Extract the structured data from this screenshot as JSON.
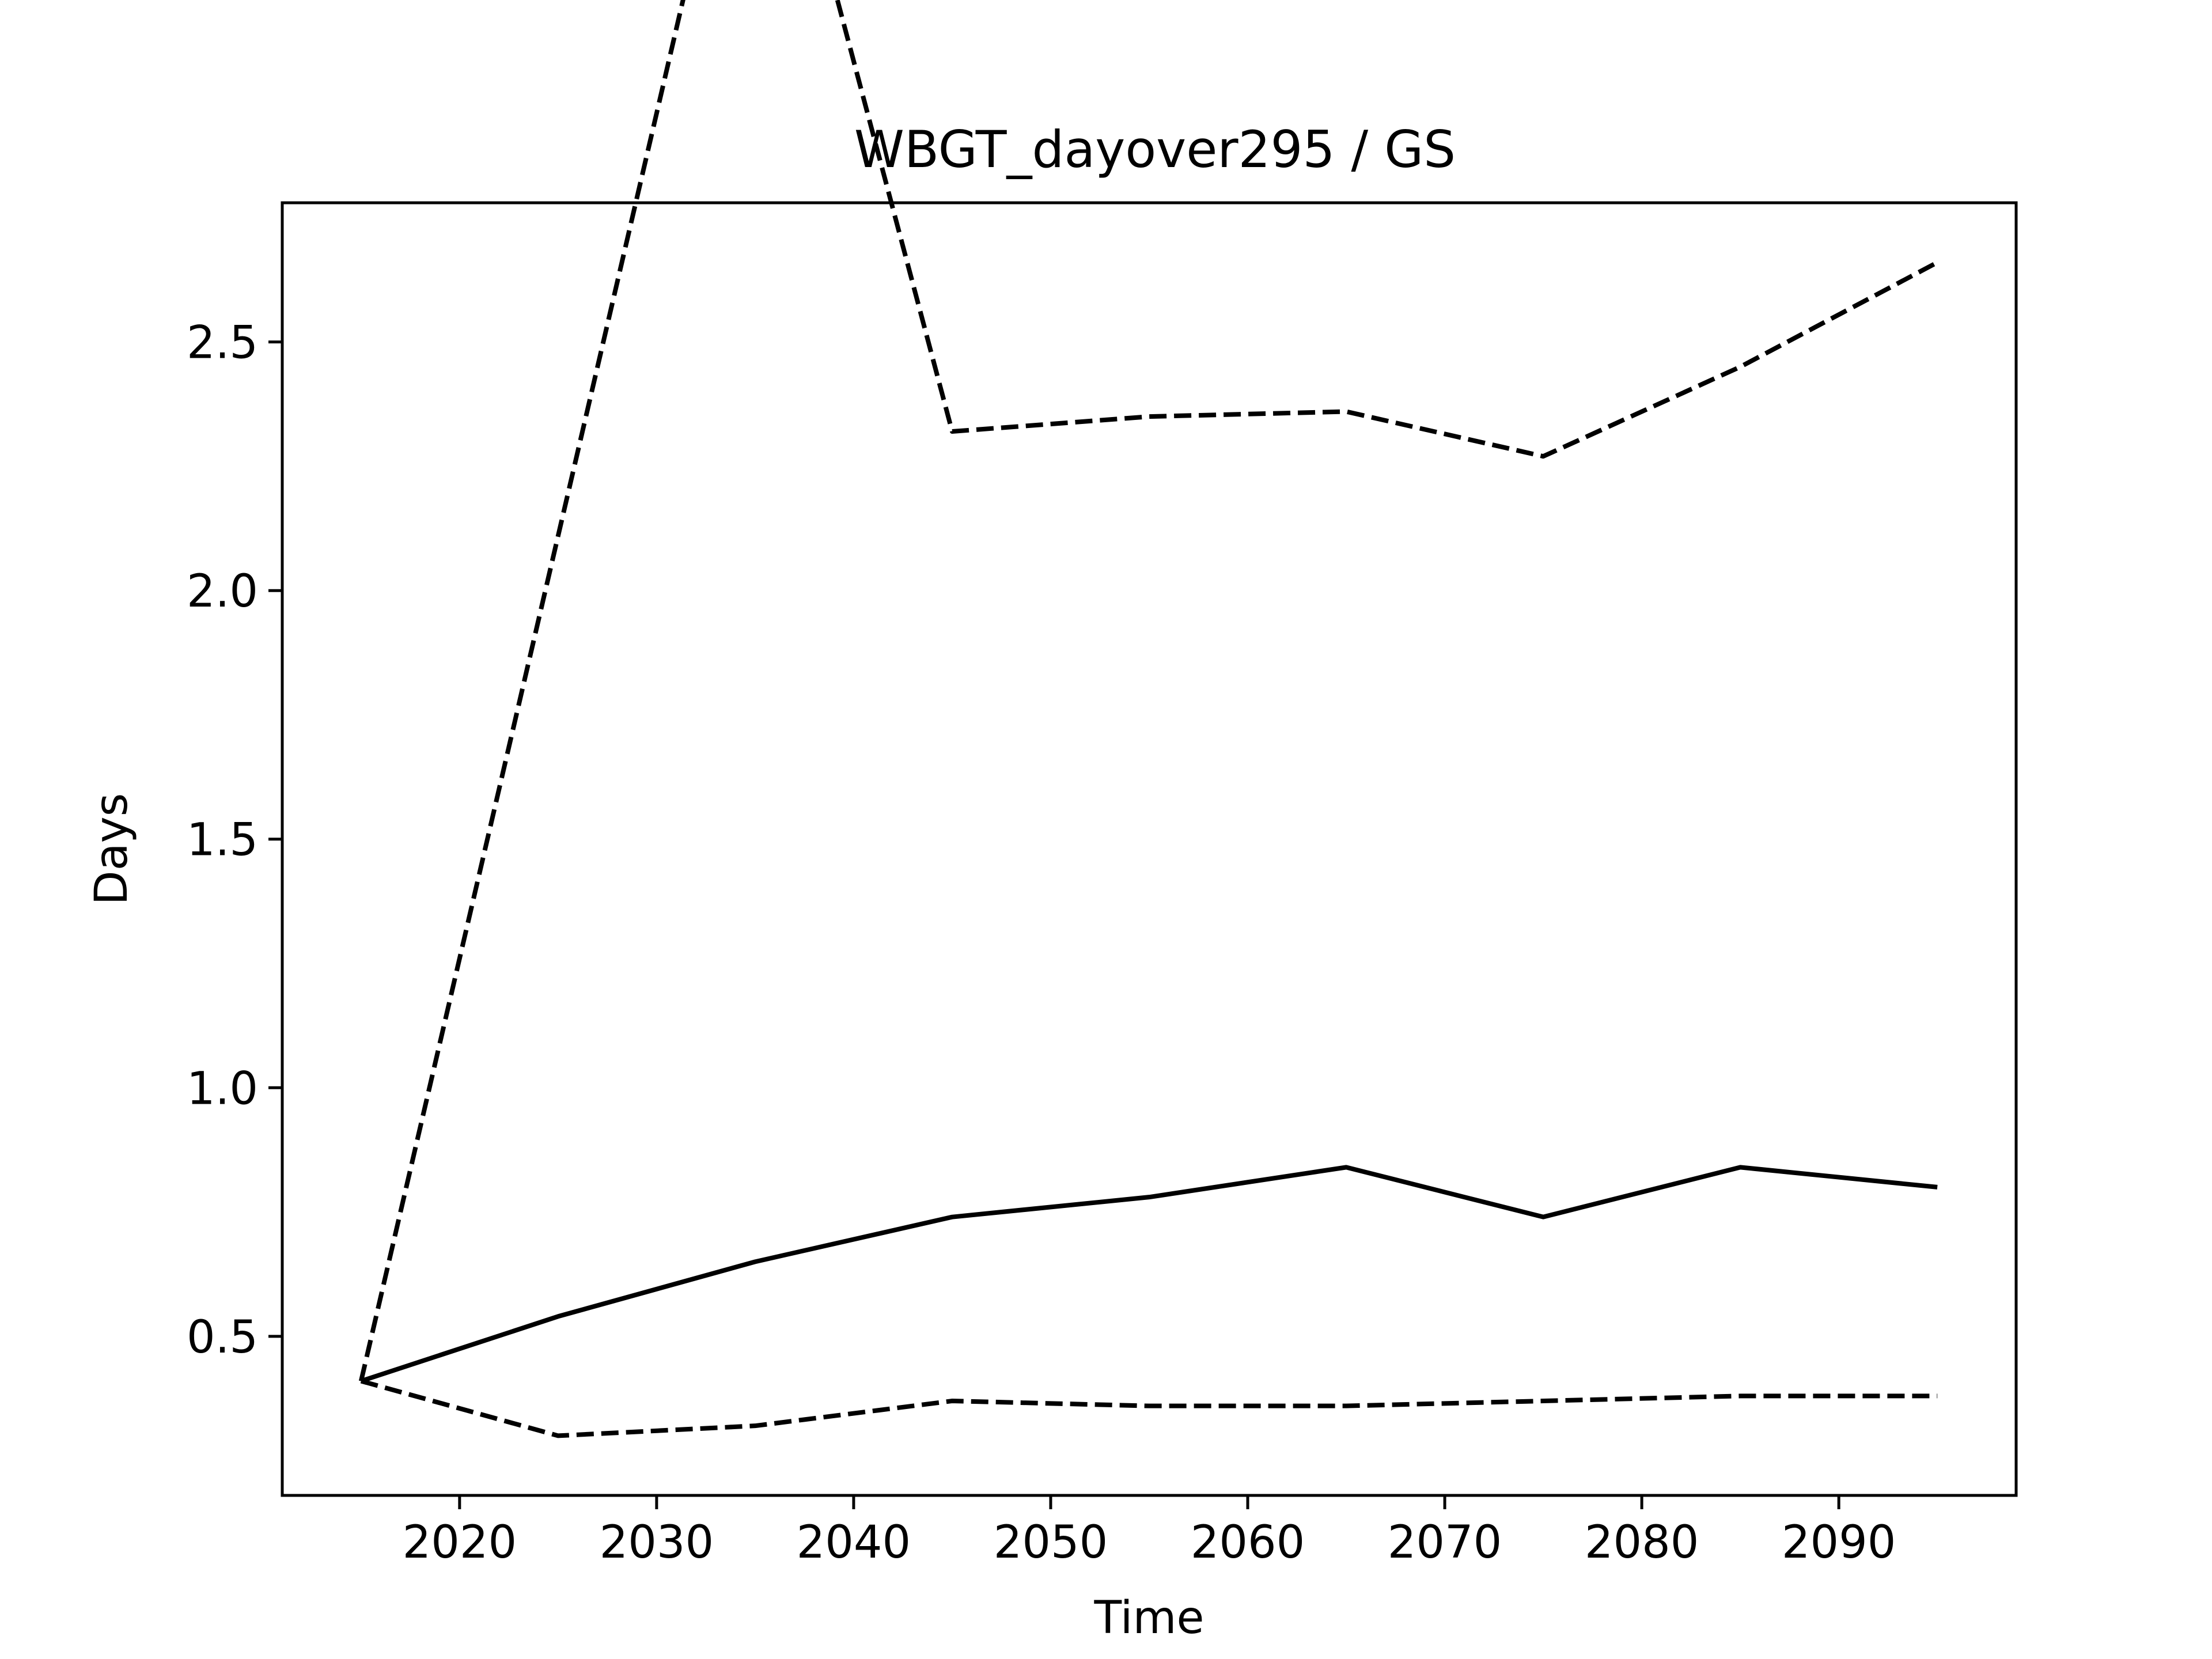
{
  "chart_data": {
    "type": "line",
    "title": "WBGT_dayover295 / GS",
    "xlabel": "Time",
    "ylabel": "Days",
    "xlim": [
      2011,
      2099
    ],
    "ylim": [
      0.18,
      2.78
    ],
    "xticks": [
      2020,
      2030,
      2040,
      2050,
      2060,
      2070,
      2080,
      2090
    ],
    "xtick_labels": [
      "2020",
      "2030",
      "2040",
      "2050",
      "2060",
      "2070",
      "2080",
      "2090"
    ],
    "yticks": [
      0.5,
      1.0,
      1.5,
      2.0,
      2.5
    ],
    "ytick_labels": [
      "0.5",
      "1.0",
      "1.5",
      "2.0",
      "2.5"
    ],
    "grid": false,
    "legend": "none",
    "x": [
      2015,
      2025,
      2035,
      2045,
      2055,
      2065,
      2075,
      2085,
      2095
    ],
    "series": [
      {
        "values": [
          0.41,
          2.11,
          3.81,
          2.32,
          2.35,
          2.36,
          2.27,
          2.45,
          2.66
        ],
        "line_style": "dashed",
        "color": "#000000"
      },
      {
        "values": [
          0.41,
          0.54,
          0.65,
          0.74,
          0.78,
          0.84,
          0.74,
          0.84,
          0.8
        ],
        "line_style": "solid",
        "color": "#000000"
      },
      {
        "values": [
          0.41,
          0.3,
          0.32,
          0.37,
          0.36,
          0.36,
          0.37,
          0.38,
          0.38
        ],
        "line_style": "dashed",
        "color": "#000000"
      }
    ]
  }
}
